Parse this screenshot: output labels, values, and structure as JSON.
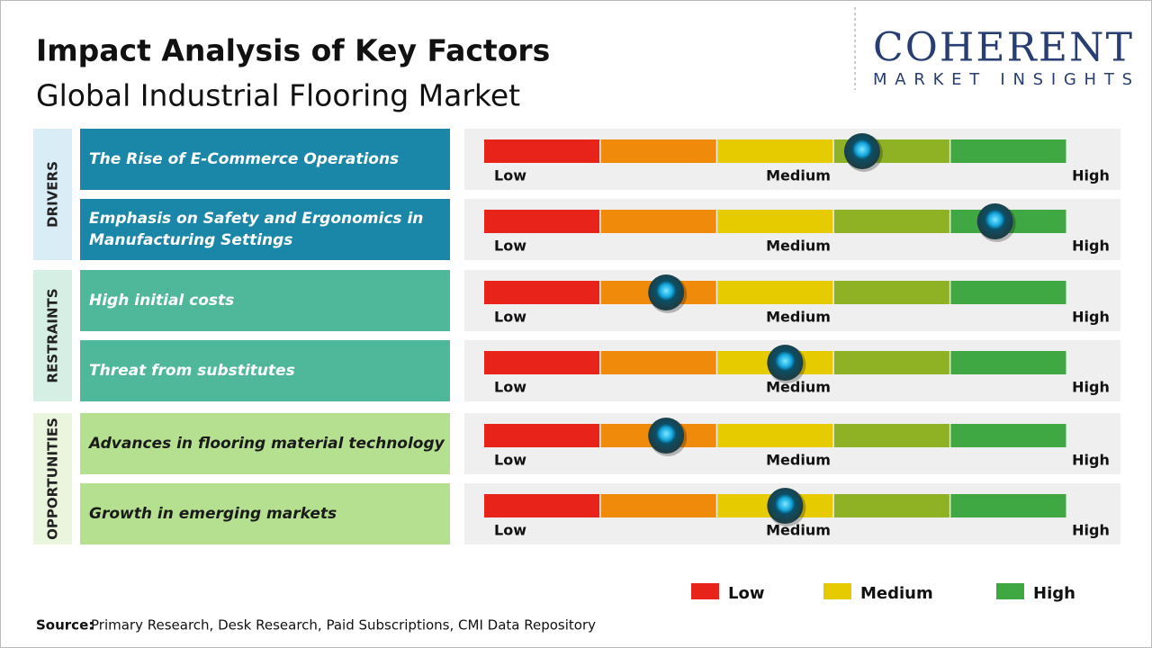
{
  "header": {
    "title": "Impact Analysis of Key Factors",
    "subtitle": "Global Industrial Flooring Market"
  },
  "logo": {
    "name": "COHERENT",
    "tagline": "MARKET INSIGHTS"
  },
  "scale": {
    "segment_colors": [
      "#e8231a",
      "#f08a0b",
      "#e6cb00",
      "#8fb225",
      "#3fa842"
    ],
    "labels": [
      "Low",
      "Medium",
      "High"
    ]
  },
  "groups": [
    {
      "label": "DRIVERS",
      "side_color": "#d9edf7",
      "color": "#1a86a8",
      "text_color": "#ffffff",
      "factors": [
        {
          "text": "The Rise of E-Commerce Operations",
          "impact": 3.24
        },
        {
          "text": "Emphasis on Safety and Ergonomics in Manufacturing Settings",
          "impact": 4.38
        }
      ]
    },
    {
      "label": "RESTRAINTS",
      "side_color": "#d6efe4",
      "color": "#4fb89a",
      "text_color": "#ffffff",
      "factors": [
        {
          "text": "High initial costs",
          "impact": 1.56
        },
        {
          "text": "Threat from substitutes",
          "impact": 2.58
        }
      ]
    },
    {
      "label": "OPPORTUNITIES",
      "side_color": "#e9f5dc",
      "color": "#b5e08f",
      "text_color": "#1a1a1a",
      "factors": [
        {
          "text": "Advances in flooring material technology",
          "impact": 1.56
        },
        {
          "text": "Growth in emerging markets",
          "impact": 2.58
        }
      ]
    }
  ],
  "legend": [
    {
      "label": "Low",
      "color": "#e8231a"
    },
    {
      "label": "Medium",
      "color": "#e6cb00"
    },
    {
      "label": "High",
      "color": "#3fa842"
    }
  ],
  "source": {
    "label": "Source:",
    "text": "Primary Research, Desk Research, Paid Subscriptions, CMI Data Repository"
  }
}
